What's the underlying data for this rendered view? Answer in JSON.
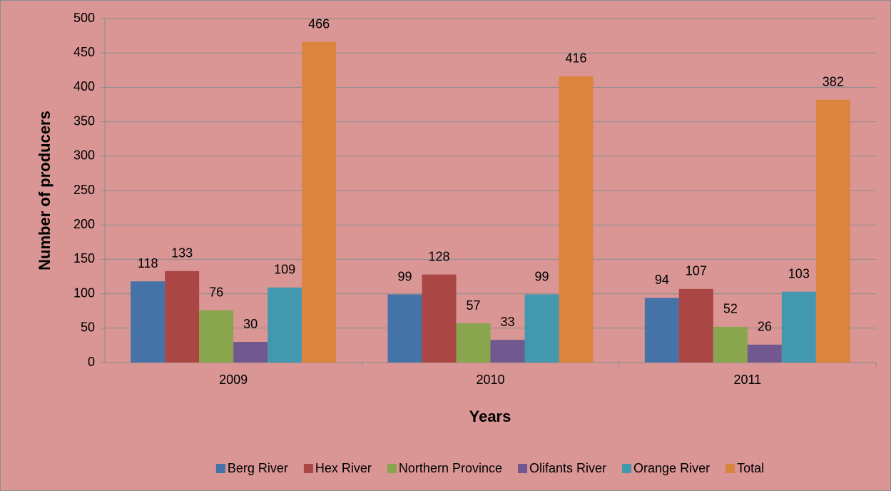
{
  "chart_data": {
    "type": "bar",
    "xlabel": "Years",
    "ylabel": "Number of producers",
    "categories": [
      "2009",
      "2010",
      "2011"
    ],
    "series": [
      {
        "name": "Berg River",
        "color": "#4572a7",
        "values": [
          118,
          99,
          94
        ]
      },
      {
        "name": "Hex River",
        "color": "#aa4643",
        "values": [
          133,
          128,
          107
        ]
      },
      {
        "name": "Northern Province",
        "color": "#89a54e",
        "values": [
          76,
          57,
          52
        ]
      },
      {
        "name": "Olifants River",
        "color": "#71588f",
        "values": [
          30,
          33,
          26
        ]
      },
      {
        "name": "Orange River",
        "color": "#4198af",
        "values": [
          109,
          99,
          103
        ]
      },
      {
        "name": "Total",
        "color": "#db843d",
        "values": [
          466,
          416,
          382
        ]
      }
    ],
    "ylim": [
      0,
      500
    ],
    "yticks": [
      0,
      50,
      100,
      150,
      200,
      250,
      300,
      350,
      400,
      450,
      500
    ],
    "grid": true,
    "data_labels": true,
    "legend": "bottom"
  }
}
